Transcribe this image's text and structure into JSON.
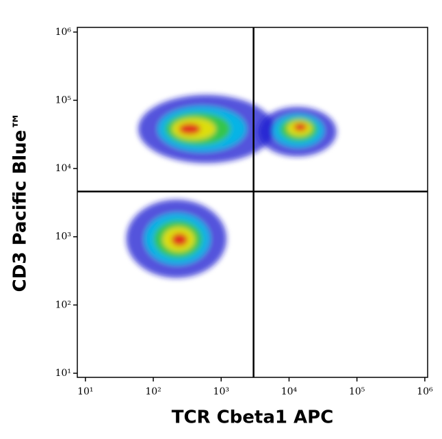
{
  "chart_data": {
    "type": "density",
    "xlabel": "TCR Cbeta1 APC",
    "ylabel": "CD3 Pacific Blue™",
    "xscale": "log",
    "yscale": "log",
    "xlim": [
      7.6,
      1100000
    ],
    "ylim": [
      8.7,
      1170000
    ],
    "xticks": [
      {
        "value": 10,
        "label": "10¹"
      },
      {
        "value": 100,
        "label": "10²"
      },
      {
        "value": 1000,
        "label": "10³"
      },
      {
        "value": 10000,
        "label": "10⁴"
      },
      {
        "value": 100000,
        "label": "10⁵"
      },
      {
        "value": 1000000,
        "label": "10⁶"
      }
    ],
    "yticks": [
      {
        "value": 10,
        "label": "10¹"
      },
      {
        "value": 100,
        "label": "10²"
      },
      {
        "value": 1000,
        "label": "10³"
      },
      {
        "value": 10000,
        "label": "10⁴"
      },
      {
        "value": 100000,
        "label": "10⁵"
      },
      {
        "value": 1000000,
        "label": "10⁶"
      }
    ],
    "gates": {
      "x": 3000,
      "y": 4600
    },
    "density_colors": [
      "#1a1ad0",
      "#00c0e8",
      "#3cc83c",
      "#f0e000",
      "#e02020"
    ],
    "populations": [
      {
        "x": 300,
        "y": 38000,
        "xrange": [
          60,
          6000
        ],
        "yrange": [
          12000,
          120000
        ]
      },
      {
        "x": 15000,
        "y": 42000,
        "xrange": [
          3500,
          50000
        ],
        "yrange": [
          15000,
          80000
        ]
      },
      {
        "x": 250,
        "y": 900,
        "xrange": [
          40,
          1200
        ],
        "yrange": [
          250,
          3500
        ]
      }
    ]
  }
}
